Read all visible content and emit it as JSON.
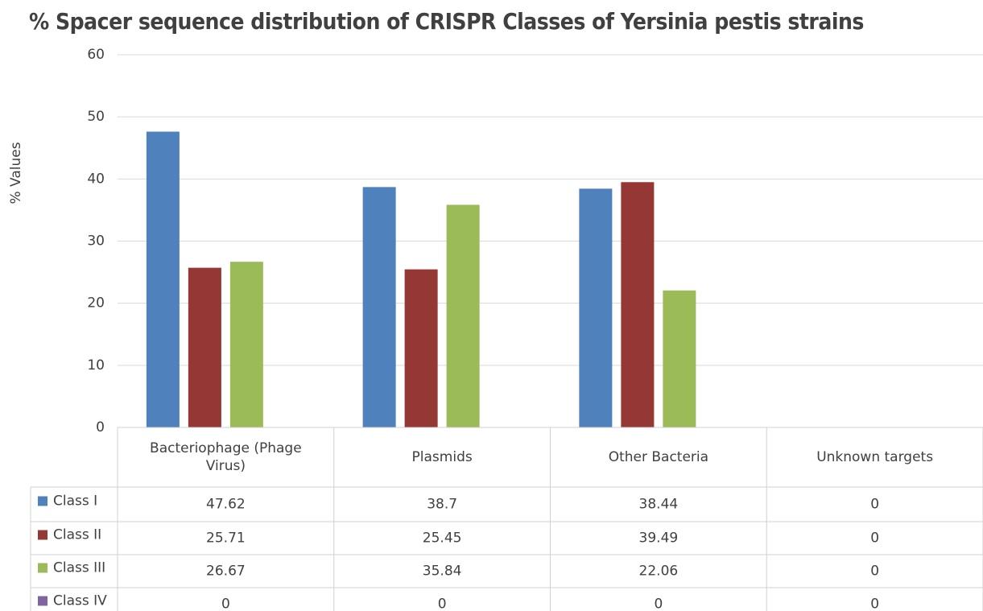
{
  "chart_data": {
    "type": "bar",
    "title": "% Spacer sequence distribution of CRISPR Classes of Yersinia pestis strains",
    "y_label": "% Values",
    "categories": [
      "Bacteriophage (Phage Virus)",
      "Plasmids",
      "Other Bacteria",
      "Unknown targets"
    ],
    "series": [
      {
        "name": "Class I",
        "color": "#4f81bd",
        "values": [
          47.62,
          38.7,
          38.44,
          0
        ]
      },
      {
        "name": "Class II",
        "color": "#953735",
        "values": [
          25.71,
          25.45,
          39.49,
          0
        ]
      },
      {
        "name": "Class III",
        "color": "#9bbb59",
        "values": [
          26.67,
          35.84,
          22.06,
          0
        ]
      },
      {
        "name": "Class IV",
        "color": "#8064a2",
        "values": [
          0,
          0,
          0,
          0
        ]
      }
    ],
    "ylim": [
      0,
      60
    ],
    "yticks": [
      0,
      10,
      20,
      30,
      40,
      50,
      60
    ],
    "grid": true
  }
}
